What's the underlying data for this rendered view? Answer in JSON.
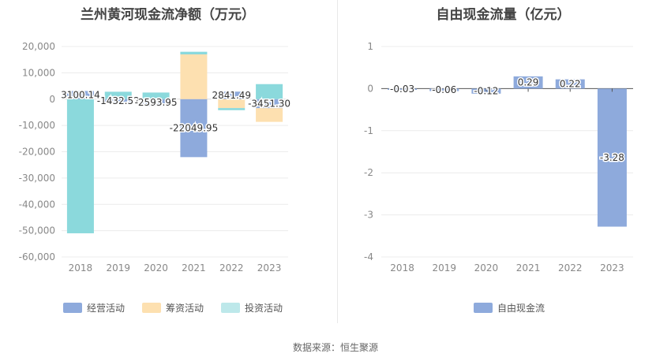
{
  "source": "数据来源：恒生聚源",
  "colors": {
    "operating": "#8eaadc",
    "financing": "#fde0b0",
    "investing": "#8bd9dc",
    "fcf": "#8eaadc"
  },
  "chart_data": [
    {
      "type": "bar",
      "stacked": true,
      "title": "兰州黄河现金流净额（万元）",
      "categories": [
        "2018",
        "2019",
        "2020",
        "2021",
        "2022",
        "2023"
      ],
      "ylim": [
        -60000,
        20000
      ],
      "yticks": [
        20000,
        10000,
        0,
        -10000,
        -20000,
        -30000,
        -40000,
        -50000,
        -60000
      ],
      "ytick_labels": [
        "20,000",
        "10,000",
        "0",
        "-10,000",
        "-20,000",
        "-30,000",
        "-40,000",
        "-50,000",
        "-60,000"
      ],
      "legend_position": "bottom",
      "series": [
        {
          "name": "经营活动",
          "color": "#8eaadc",
          "values": [
            3100.14,
            -1432.52,
            -2593.95,
            -22049.95,
            2841.49,
            -3451.3
          ]
        },
        {
          "name": "筹资活动",
          "color": "#fde0b0",
          "values": [
            0,
            0,
            0,
            17000,
            -3400,
            -5200
          ]
        },
        {
          "name": "投资活动",
          "color": "#8bd9dc",
          "values": [
            -51000,
            2800,
            2500,
            1000,
            -800,
            5700
          ]
        }
      ],
      "data_labels": [
        "3100.14",
        "-1432.52",
        "-2593.95",
        "-22049.95",
        "2841.49",
        "-3451.30"
      ]
    },
    {
      "type": "bar",
      "title": "自由现金流量（亿元）",
      "categories": [
        "2018",
        "2019",
        "2020",
        "2021",
        "2022",
        "2023"
      ],
      "ylim": [
        -4,
        1
      ],
      "yticks": [
        1,
        0,
        -1,
        -2,
        -3,
        -4
      ],
      "ytick_labels": [
        "1",
        "0",
        "-1",
        "-2",
        "-3",
        "-4"
      ],
      "legend_position": "bottom",
      "series": [
        {
          "name": "自由现金流",
          "color": "#8eaadc",
          "values": [
            -0.03,
            -0.06,
            -0.12,
            0.29,
            0.22,
            -3.28
          ]
        }
      ],
      "data_labels": [
        "-0.03",
        "-0.06",
        "-0.12",
        "0.29",
        "0.22",
        "-3.28"
      ]
    }
  ]
}
